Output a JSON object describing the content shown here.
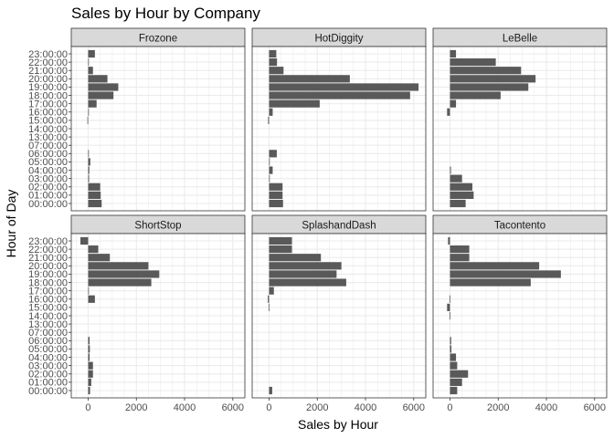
{
  "chart_data": {
    "type": "bar",
    "orientation": "horizontal",
    "title": "Sales by Hour by Company",
    "xlabel": "Sales by Hour",
    "ylabel": "Hour of Day",
    "xlim": [
      -700,
      6500
    ],
    "x_ticks": [
      0,
      2000,
      4000,
      6000
    ],
    "grid": true,
    "legend": "none",
    "bar_color": "#595959",
    "panel_background": "#ffffff",
    "strip_fill": "#d9d9d9",
    "categories": [
      "00:00:00",
      "01:00:00",
      "02:00:00",
      "03:00:00",
      "04:00:00",
      "05:00:00",
      "06:00:00",
      "07:00:00",
      "13:00:00",
      "14:00:00",
      "15:00:00",
      "16:00:00",
      "17:00:00",
      "18:00:00",
      "19:00:00",
      "20:00:00",
      "21:00:00",
      "22:00:00",
      "23:00:00"
    ],
    "series": [
      {
        "name": "Frozone",
        "values": [
          560,
          520,
          500,
          40,
          50,
          90,
          30,
          0,
          0,
          0,
          -30,
          10,
          350,
          1050,
          1250,
          800,
          200,
          10,
          280
        ]
      },
      {
        "name": "HotDiggity",
        "values": [
          580,
          560,
          560,
          10,
          150,
          20,
          320,
          0,
          0,
          0,
          -40,
          150,
          2100,
          5850,
          6200,
          3350,
          600,
          330,
          300
        ]
      },
      {
        "name": "LeBelle",
        "values": [
          650,
          980,
          930,
          500,
          40,
          0,
          0,
          0,
          0,
          0,
          0,
          -120,
          250,
          2100,
          3250,
          3550,
          2950,
          1900,
          250
        ]
      },
      {
        "name": "ShortStop",
        "values": [
          80,
          130,
          200,
          200,
          60,
          70,
          60,
          0,
          0,
          0,
          0,
          280,
          20,
          2620,
          2950,
          2500,
          900,
          420,
          -320
        ]
      },
      {
        "name": "SplashandDash",
        "values": [
          130,
          0,
          0,
          0,
          0,
          0,
          0,
          0,
          0,
          0,
          -20,
          -50,
          200,
          3200,
          2800,
          3000,
          2150,
          950,
          950
        ]
      },
      {
        "name": "Tacontento",
        "values": [
          300,
          500,
          750,
          300,
          250,
          60,
          50,
          0,
          0,
          -20,
          -120,
          -20,
          0,
          3350,
          4600,
          3700,
          800,
          800,
          -80
        ]
      }
    ]
  }
}
